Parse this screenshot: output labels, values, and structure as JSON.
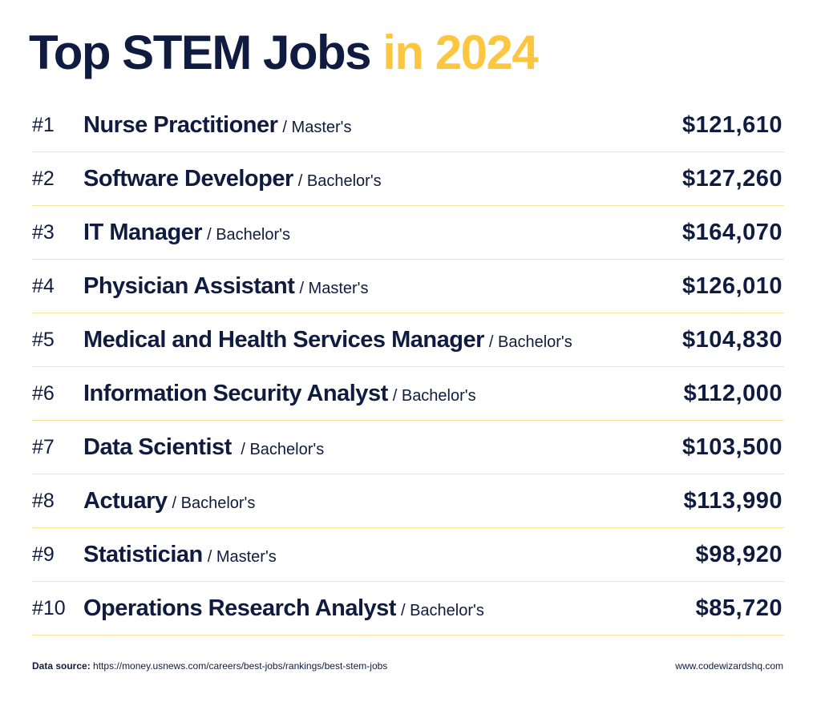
{
  "title": {
    "main": "Top STEM Jobs",
    "highlight": "in 2024"
  },
  "colors": {
    "navy": "#0f1c3f",
    "accent": "#fdc640",
    "divider": "#fde39a"
  },
  "jobs": [
    {
      "rank": "#1",
      "title": "Nurse Practitioner",
      "degree": "/ Master's",
      "salary": "$121,610"
    },
    {
      "rank": "#2",
      "title": "Software Developer",
      "degree": "/ Bachelor's",
      "salary": "$127,260"
    },
    {
      "rank": "#3",
      "title": "IT Manager",
      "degree": "/ Bachelor's",
      "salary": "$164,070"
    },
    {
      "rank": "#4",
      "title": "Physician Assistant",
      "degree": "/ Master's",
      "salary": "$126,010"
    },
    {
      "rank": "#5",
      "title": "Medical and Health Services Manager",
      "degree": "/ Bachelor's",
      "salary": "$104,830"
    },
    {
      "rank": "#6",
      "title": "Information Security Analyst",
      "degree": "/ Bachelor's",
      "salary": "$112,000"
    },
    {
      "rank": "#7",
      "title": "Data Scientist",
      "degree": " / Bachelor's",
      "salary": "$103,500"
    },
    {
      "rank": "#8",
      "title": "Actuary",
      "degree": "/ Bachelor's",
      "salary": "$113,990"
    },
    {
      "rank": "#9",
      "title": "Statistician",
      "degree": "/ Master's",
      "salary": "$98,920"
    },
    {
      "rank": "#10",
      "title": "Operations Research Analyst",
      "degree": "/ Bachelor's",
      "salary": "$85,720"
    }
  ],
  "footer": {
    "source_label": "Data source:",
    "source_url": "https://money.usnews.com/careers/best-jobs/rankings/best-stem-jobs",
    "site": "www.codewizardshq.com"
  }
}
